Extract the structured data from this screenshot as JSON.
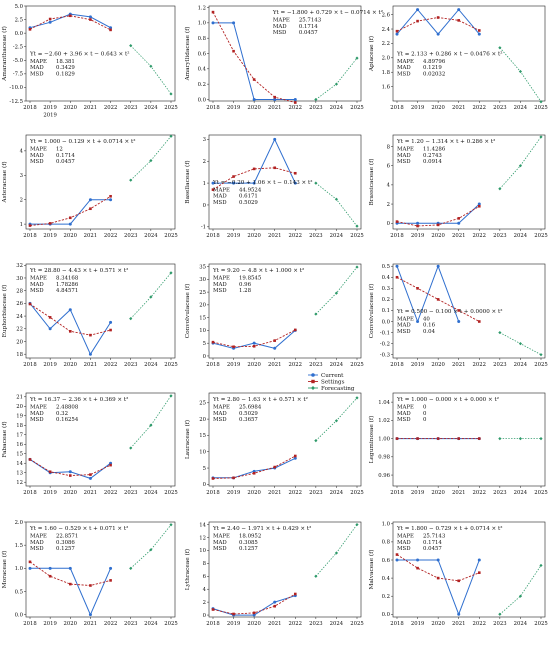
{
  "colors": {
    "current": "#2f6fcf",
    "settings": "#b22222",
    "forecasting": "#2e9a6a",
    "axis": "#222222"
  },
  "legend": {
    "current": "Current",
    "settings": "Settings",
    "forecasting": "Forecasting"
  },
  "chart_data": [
    {
      "type": "line",
      "ylabel": "Amaranthaceae (f)",
      "ylim": [
        -12.5,
        5.0
      ],
      "yticks": [
        "5.0",
        "2.5",
        "0.0",
        "-2.5",
        "-5.0",
        "-7.5",
        "-10.0",
        "-12.5"
      ],
      "ytickvals": [
        5.0,
        2.5,
        0.0,
        -2.5,
        -5.0,
        -7.5,
        -10.0,
        -12.5
      ],
      "x_labels": [
        "2018",
        "2019",
        "2020",
        "2021",
        "2022",
        "2023",
        "2024",
        "2025"
      ],
      "x_extra_label": "2019",
      "equation": "Yt = −2.60 + 3.96 × t − 0.643 × t²",
      "stats": {
        "MAPE": "18.381",
        "MAD": "0.3429",
        "MSD": "0.1829"
      },
      "stats_pos": "middle-left",
      "current": [
        1.0,
        2.0,
        3.5,
        3.0,
        1.0
      ],
      "settings": [
        0.7,
        2.6,
        3.2,
        2.5,
        0.6
      ],
      "forecasting": [
        -2.3,
        -6.1,
        -11.2
      ]
    },
    {
      "type": "line",
      "ylabel": "Amaryllidaceae (f)",
      "ylim": [
        -0.02,
        1.22
      ],
      "yticks": [
        "1.2",
        "1.0",
        "0.8",
        "0.6",
        "0.4",
        "0.2",
        "0.0"
      ],
      "ytickvals": [
        1.2,
        1.0,
        0.8,
        0.6,
        0.4,
        0.2,
        0.0
      ],
      "x_labels": [
        "2018",
        "2019",
        "2020",
        "2021",
        "2022",
        "2023",
        "2024",
        "2025"
      ],
      "equation": "Yt = −1.800 + 0.729 × t − 0.0714 × t²",
      "stats": {
        "MAPE": "25.7143",
        "MAD": "0.1714",
        "MSD": "0.0457"
      },
      "stats_pos": "top-right",
      "current": [
        1.0,
        1.0,
        0.0,
        0.0,
        0.0
      ],
      "settings": [
        1.14,
        0.63,
        0.26,
        0.03,
        -0.04
      ],
      "forecasting": [
        0.0,
        0.2,
        0.54
      ]
    },
    {
      "type": "line",
      "ylabel": "Apiaceae (f)",
      "ylim": [
        1.4,
        2.72
      ],
      "yticks": [
        "2.6",
        "2.4",
        "2.2",
        "2.0",
        "1.8",
        "1.6"
      ],
      "ytickvals": [
        2.6,
        2.4,
        2.2,
        2.0,
        1.8,
        1.6
      ],
      "x_labels": [
        "2018",
        "2019",
        "2020",
        "2021",
        "2022",
        "2023",
        "2024",
        "2025"
      ],
      "equation": "Yt = 2.133 + 0.286 × t − 0.0476 × t²",
      "stats": {
        "MAPE": "4.89796",
        "MAD": "0.1219",
        "MSD": "0.02032"
      },
      "stats_pos": "middle-left",
      "current": [
        2.33,
        2.67,
        2.33,
        2.67,
        2.33
      ],
      "settings": [
        2.37,
        2.51,
        2.56,
        2.52,
        2.38
      ],
      "forecasting": [
        2.14,
        1.81,
        1.39
      ]
    },
    {
      "type": "line",
      "ylabel": "Asteraceae (f)",
      "ylim": [
        0.8,
        4.65
      ],
      "yticks": [
        "4",
        "3",
        "2",
        "1"
      ],
      "ytickvals": [
        4,
        3,
        2,
        1
      ],
      "x_labels": [
        "2018",
        "2019",
        "2020",
        "2021",
        "2022",
        "2023",
        "2024",
        "2025"
      ],
      "equation": "Yt = 1.000 − 0.129 × t + 0.0714 × t²",
      "stats": {
        "MAPE": "12",
        "MAD": "0.1714",
        "MSD": "0.0457"
      },
      "stats_pos": "top-left",
      "current": [
        1.0,
        1.0,
        1.0,
        2.0,
        2.0
      ],
      "settings": [
        0.94,
        1.03,
        1.26,
        1.63,
        2.14
      ],
      "forecasting": [
        2.8,
        3.6,
        4.6
      ]
    },
    {
      "type": "line",
      "ylabel": "Basellaceae (f)",
      "ylim": [
        -1.1,
        3.2
      ],
      "yticks": [
        "3",
        "2",
        "1",
        "0",
        "-1"
      ],
      "ytickvals": [
        3,
        2,
        1,
        0,
        -1
      ],
      "x_labels": [
        "2018",
        "2019",
        "2020",
        "2021",
        "2022",
        "2023",
        "2024",
        "2025"
      ],
      "equation": "Yt = −0.20 + 1.06 × t − 0.143 × t²",
      "stats": {
        "MAPE": "44.9524",
        "MAD": "0.6171",
        "MSD": "0.5029"
      },
      "stats_pos": "middle-left",
      "current": [
        1.0,
        1.0,
        1.0,
        3.0,
        1.0
      ],
      "settings": [
        0.7,
        1.3,
        1.65,
        1.7,
        1.45
      ],
      "forecasting": [
        1.0,
        0.26,
        -0.97
      ]
    },
    {
      "type": "line",
      "ylabel": "Brassicaceae (f)",
      "ylim": [
        -0.6,
        9.2
      ],
      "yticks": [
        "8",
        "6",
        "4",
        "2",
        "0"
      ],
      "ytickvals": [
        8,
        6,
        4,
        2,
        0
      ],
      "x_labels": [
        "2018",
        "2019",
        "2020",
        "2021",
        "2022",
        "2023",
        "2024",
        "2025"
      ],
      "equation": "Yt = 1.20 − 1.314 × t + 0.286 × t²",
      "stats": {
        "MAPE": "11.4286",
        "MAD": "0.2743",
        "MSD": "0.0914"
      },
      "stats_pos": "top-left",
      "current": [
        0.0,
        0.0,
        0.0,
        0.0,
        2.0
      ],
      "settings": [
        0.17,
        -0.29,
        -0.17,
        0.51,
        1.77
      ],
      "forecasting": [
        3.6,
        6.0,
        9.0
      ]
    },
    {
      "type": "line",
      "ylabel": "Euphorbiaceae (f)",
      "ylim": [
        17.4,
        32.2
      ],
      "yticks": [
        "32",
        "30",
        "28",
        "26",
        "24",
        "22",
        "20",
        "18"
      ],
      "ytickvals": [
        32,
        30,
        28,
        26,
        24,
        22,
        20,
        18
      ],
      "x_labels": [
        "2018",
        "2019",
        "2020",
        "2021",
        "2022",
        "2023",
        "2024",
        "2025"
      ],
      "equation": "Yt = 28.80 − 4.43 × t + 0.571 × t²",
      "stats": {
        "MAPE": "8.34168",
        "MAD": "1.78286",
        "MSD": "4.84571"
      },
      "stats_pos": "top-left",
      "current": [
        26.0,
        22.0,
        25.0,
        18.0,
        23.0
      ],
      "settings": [
        25.9,
        23.8,
        21.6,
        21.0,
        21.8
      ],
      "forecasting": [
        23.6,
        27.0,
        30.8
      ]
    },
    {
      "type": "line",
      "ylabel": "Convolvulaceae (f)",
      "ylim": [
        -0.8,
        36.0
      ],
      "yticks": [
        "35",
        "30",
        "25",
        "20",
        "15",
        "10",
        "5",
        "0"
      ],
      "ytickvals": [
        35,
        30,
        25,
        20,
        15,
        10,
        5,
        0
      ],
      "x_labels": [
        "2018",
        "2019",
        "2020",
        "2021",
        "2022",
        "2023",
        "2024",
        "2025"
      ],
      "equation": "Yt = 9.20 − 4.8 × t + 1.000 × t²",
      "stats": {
        "MAPE": "19.8545",
        "MAD": "0.96",
        "MSD": "1.28"
      },
      "stats_pos": "top-left",
      "current": [
        5.0,
        3.0,
        5.0,
        3.0,
        10.0
      ],
      "settings": [
        5.4,
        3.6,
        3.8,
        6.0,
        10.2
      ],
      "forecasting": [
        16.4,
        24.6,
        34.8
      ]
    },
    {
      "type": "line",
      "ylabel": "Convolvulaceae (f)",
      "ylim": [
        -0.33,
        0.52
      ],
      "yticks": [
        "0.5",
        "0.4",
        "0.3",
        "0.2",
        "0.1",
        "0.0",
        "-0.1",
        "-0.2",
        "-0.3"
      ],
      "ytickvals": [
        0.5,
        0.4,
        0.3,
        0.2,
        0.1,
        0.0,
        -0.1,
        -0.2,
        -0.3
      ],
      "x_labels": [
        "2018",
        "2019",
        "2020",
        "2021",
        "2022",
        "2023",
        "2024",
        "2025"
      ],
      "equation": "Yt = 0.500 − 0.100 × t + 0.0000 × t²",
      "stats": {
        "MAPE": "40",
        "MAD": "0.16",
        "MSD": "0.04"
      },
      "stats_pos": "middle-left",
      "current": [
        0.5,
        0.0,
        0.5,
        0.0,
        null
      ],
      "settings": [
        0.4,
        0.3,
        0.2,
        0.1,
        0.0
      ],
      "forecasting": [
        -0.1,
        -0.2,
        -0.3
      ]
    },
    {
      "type": "line",
      "ylabel": "Fabaceae (f)",
      "ylim": [
        11.6,
        21.4
      ],
      "yticks": [
        "21",
        "20",
        "19",
        "18",
        "17",
        "16",
        "15",
        "14",
        "13",
        "12"
      ],
      "ytickvals": [
        21,
        20,
        19,
        18,
        17,
        16,
        15,
        14,
        13,
        12
      ],
      "x_labels": [
        "2018",
        "2019",
        "2020",
        "2021",
        "2022",
        "2023",
        "2024",
        "2025"
      ],
      "equation": "Yt = 16.37 − 2.36 × t + 0.369 × t²",
      "stats": {
        "MAPE": "2.48808",
        "MAD": "0.32",
        "MSD": "0.16254"
      },
      "stats_pos": "top-left",
      "current": [
        14.4,
        13.0,
        13.1,
        12.4,
        14.0
      ],
      "settings": [
        14.4,
        13.1,
        12.7,
        12.8,
        13.8
      ],
      "forecasting": [
        15.6,
        18.0,
        21.1
      ]
    },
    {
      "type": "line",
      "ylabel": "Lauraceae (f)",
      "ylim": [
        -0.5,
        28.0
      ],
      "yticks": [
        "25",
        "20",
        "15",
        "10",
        "5",
        "0"
      ],
      "ytickvals": [
        25,
        20,
        15,
        10,
        5,
        0
      ],
      "x_labels": [
        "2018",
        "2019",
        "2020",
        "2021",
        "2022",
        "2023",
        "2024",
        "2025"
      ],
      "equation": "Yt = 2.80 − 1.63 × t + 0.571 × t²",
      "stats": {
        "MAPE": "25.6984",
        "MAD": "0.5029",
        "MSD": "0.3657"
      },
      "stats_pos": "top-left",
      "current": [
        2.0,
        2.0,
        4.0,
        5.0,
        8.0
      ],
      "settings": [
        1.8,
        2.0,
        3.4,
        5.3,
        8.7
      ],
      "forecasting": [
        13.4,
        19.5,
        26.5
      ]
    },
    {
      "type": "line",
      "ylabel": "Leguminosae (f)",
      "ylim": [
        0.948,
        1.05
      ],
      "yticks": [
        "1.04",
        "1.02",
        "1.00",
        "0.98",
        "0.96"
      ],
      "ytickvals": [
        1.04,
        1.02,
        1.0,
        0.98,
        0.96
      ],
      "x_labels": [
        "2018",
        "2019",
        "2020",
        "2021",
        "2022",
        "2023",
        "2024",
        "2025"
      ],
      "equation": "Yt = 1.000 − 0.000 × t + 0.000 × t²",
      "stats": {
        "MAPE": "0",
        "MAD": "0",
        "MSD": "0"
      },
      "stats_pos": "top-left",
      "current": [
        1.0,
        1.0,
        1.0,
        1.0,
        1.0
      ],
      "settings": [
        1.0,
        1.0,
        1.0,
        1.0,
        1.0
      ],
      "forecasting": [
        1.0,
        1.0,
        1.0
      ]
    },
    {
      "type": "line",
      "ylabel": "Moraceae (f)",
      "ylim": [
        -0.05,
        2.0
      ],
      "yticks": [
        "2.0",
        "1.5",
        "1.0",
        "0.5",
        "0.0"
      ],
      "ytickvals": [
        2.0,
        1.5,
        1.0,
        0.5,
        0.0
      ],
      "x_labels": [
        "2018",
        "2019",
        "2020",
        "2021",
        "2022",
        "2023",
        "2024",
        "2025"
      ],
      "equation": "Yt = 1.60 − 0.529 × t + 0.071 × t²",
      "stats": {
        "MAPE": "22.8571",
        "MAD": "0.3086",
        "MSD": "0.1257"
      },
      "stats_pos": "top-left",
      "current": [
        1.0,
        1.0,
        1.0,
        0.0,
        1.0
      ],
      "settings": [
        1.14,
        0.83,
        0.66,
        0.63,
        0.74
      ],
      "forecasting": [
        1.0,
        1.4,
        1.94
      ]
    },
    {
      "type": "line",
      "ylabel": "Lythraceae (f)",
      "ylim": [
        -0.3,
        14.4
      ],
      "yticks": [
        "14",
        "12",
        "10",
        "8",
        "6",
        "4",
        "2",
        "0"
      ],
      "ytickvals": [
        14,
        12,
        10,
        8,
        6,
        4,
        2,
        0
      ],
      "x_labels": [
        "2018",
        "2019",
        "2020",
        "2021",
        "2022",
        "2023",
        "2024",
        "2025"
      ],
      "equation": "Yt = 2.40 − 1.971 × t + 0.429 × t²",
      "stats": {
        "MAPE": "18.0952",
        "MAD": "0.3085",
        "MSD": "0.1257"
      },
      "stats_pos": "top-left",
      "current": [
        1.0,
        0.0,
        0.0,
        2.0,
        3.0
      ],
      "settings": [
        0.86,
        0.17,
        0.34,
        1.37,
        3.26
      ],
      "forecasting": [
        6.0,
        9.6,
        14.0
      ]
    },
    {
      "type": "line",
      "ylabel": "Malvaceae (f)",
      "ylim": [
        -0.03,
        1.02
      ],
      "yticks": [
        "1.0",
        "0.8",
        "0.6",
        "0.4",
        "0.2",
        "0.0"
      ],
      "ytickvals": [
        1.0,
        0.8,
        0.6,
        0.4,
        0.2,
        0.0
      ],
      "x_labels": [
        "2018",
        "2019",
        "2020",
        "2021",
        "2022",
        "2023",
        "2024",
        "2025"
      ],
      "equation": "Yt = 1.800 − 0.729 × t + 0.0714 × t²",
      "stats": {
        "MAPE": "25.7143",
        "MAD": "0.1714",
        "MSD": "0.0457"
      },
      "stats_pos": "top-left",
      "current": [
        0.6,
        0.6,
        0.6,
        0.0,
        0.6
      ],
      "settings": [
        0.66,
        0.51,
        0.4,
        0.37,
        0.46
      ],
      "forecasting": [
        0.0,
        0.2,
        0.54
      ]
    }
  ]
}
